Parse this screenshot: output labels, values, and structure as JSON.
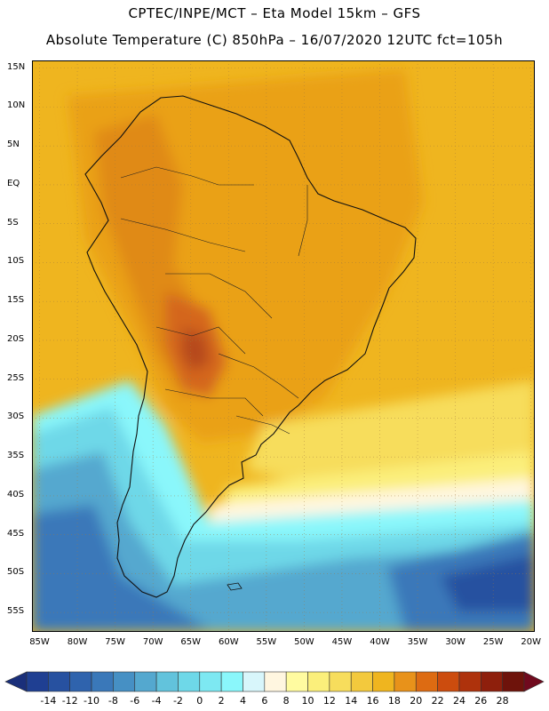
{
  "header": {
    "line1": "CPTEC/INPE/MCT –  Eta Model 15km – GFS",
    "line2": "Absolute Temperature (C) 850hPa – 16/07/2020 12UTC fct=105h"
  },
  "map": {
    "lat_ticks": [
      "15N",
      "10N",
      "5N",
      "EQ",
      "5S",
      "10S",
      "15S",
      "20S",
      "25S",
      "30S",
      "35S",
      "40S",
      "45S",
      "50S",
      "55S"
    ],
    "lon_ticks": [
      "85W",
      "80W",
      "75W",
      "70W",
      "65W",
      "60W",
      "55W",
      "50W",
      "45W",
      "40W",
      "35W",
      "30W",
      "25W",
      "20W"
    ],
    "lat_values": [
      15,
      10,
      5,
      0,
      -5,
      -10,
      -15,
      -20,
      -25,
      -30,
      -35,
      -40,
      -45,
      -50,
      -55
    ],
    "lon_values": [
      -85,
      -80,
      -75,
      -70,
      -65,
      -60,
      -55,
      -50,
      -45,
      -40,
      -35,
      -30,
      -25,
      -20
    ],
    "extent": {
      "lon_min": -86,
      "lon_max": -19.5,
      "lat_max": 16,
      "lat_min": -57.5
    }
  },
  "colorbar": {
    "labels": [
      "-14",
      "-12",
      "-10",
      "-8",
      "-6",
      "-4",
      "-2",
      "0",
      "2",
      "4",
      "6",
      "8",
      "10",
      "12",
      "14",
      "16",
      "18",
      "20",
      "22",
      "24",
      "26",
      "28"
    ],
    "colors": [
      "#1f3f92",
      "#2751a0",
      "#2f63ad",
      "#3a78b9",
      "#4690c4",
      "#54a8cf",
      "#62c3dc",
      "#6ed8e8",
      "#7de8f2",
      "#8af7fb",
      "#d8f6fb",
      "#fff6e0",
      "#fffba0",
      "#fbef7b",
      "#f7dd5c",
      "#f3c93d",
      "#efb51f",
      "#e8921a",
      "#dd6b12",
      "#cc4c0e",
      "#ae320c",
      "#8e1f0c",
      "#6e130b"
    ],
    "under_color": "#1a2f7a",
    "over_color": "#700a1e"
  }
}
